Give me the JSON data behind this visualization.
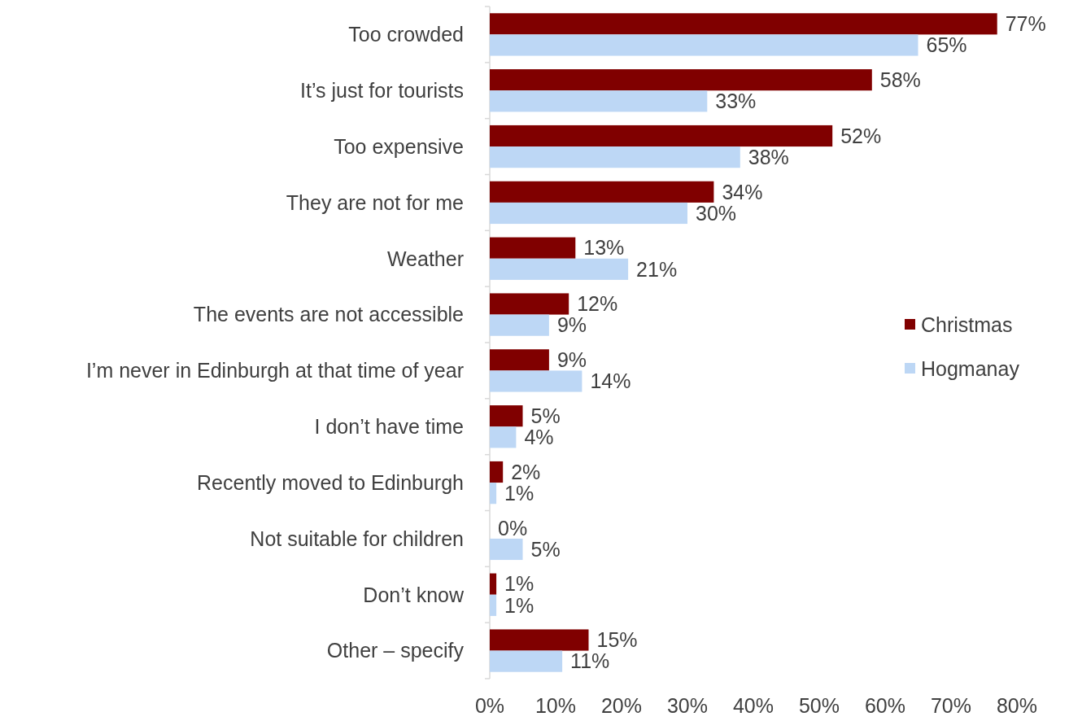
{
  "chart_data": {
    "type": "bar",
    "orientation": "horizontal",
    "categories": [
      "Too crowded",
      "It’s just for tourists",
      "Too expensive",
      "They are not for me",
      "Weather",
      "The events are not accessible",
      "I’m never in Edinburgh at that time of year",
      "I don’t have time",
      "Recently moved to Edinburgh",
      "Not suitable for children",
      "Don’t know",
      "Other – specify"
    ],
    "series": [
      {
        "name": "Christmas",
        "color": "#800000",
        "values": [
          77,
          58,
          52,
          34,
          13,
          12,
          9,
          5,
          2,
          0,
          1,
          15
        ],
        "value_labels": [
          "77%",
          "58%",
          "52%",
          "34%",
          "13%",
          "12%",
          "9%",
          "5%",
          "2%",
          "0%",
          "1%",
          "15%"
        ]
      },
      {
        "name": "Hogmanay",
        "color": "#bdd7f5",
        "values": [
          65,
          33,
          38,
          30,
          21,
          9,
          14,
          4,
          1,
          5,
          1,
          11
        ],
        "value_labels": [
          "65%",
          "33%",
          "38%",
          "30%",
          "21%",
          "9%",
          "14%",
          "4%",
          "1%",
          "5%",
          "1%",
          "11%"
        ]
      }
    ],
    "xlim": [
      0,
      80
    ],
    "xticks": [
      {
        "value": 0,
        "label": "0%"
      },
      {
        "value": 10,
        "label": "10%"
      },
      {
        "value": 20,
        "label": "20%"
      },
      {
        "value": 30,
        "label": "30%"
      },
      {
        "value": 40,
        "label": "40%"
      },
      {
        "value": 50,
        "label": "50%"
      },
      {
        "value": 60,
        "label": "60%"
      },
      {
        "value": 70,
        "label": "70%"
      },
      {
        "value": 80,
        "label": "80%"
      }
    ],
    "grid": false,
    "legend": "right"
  }
}
